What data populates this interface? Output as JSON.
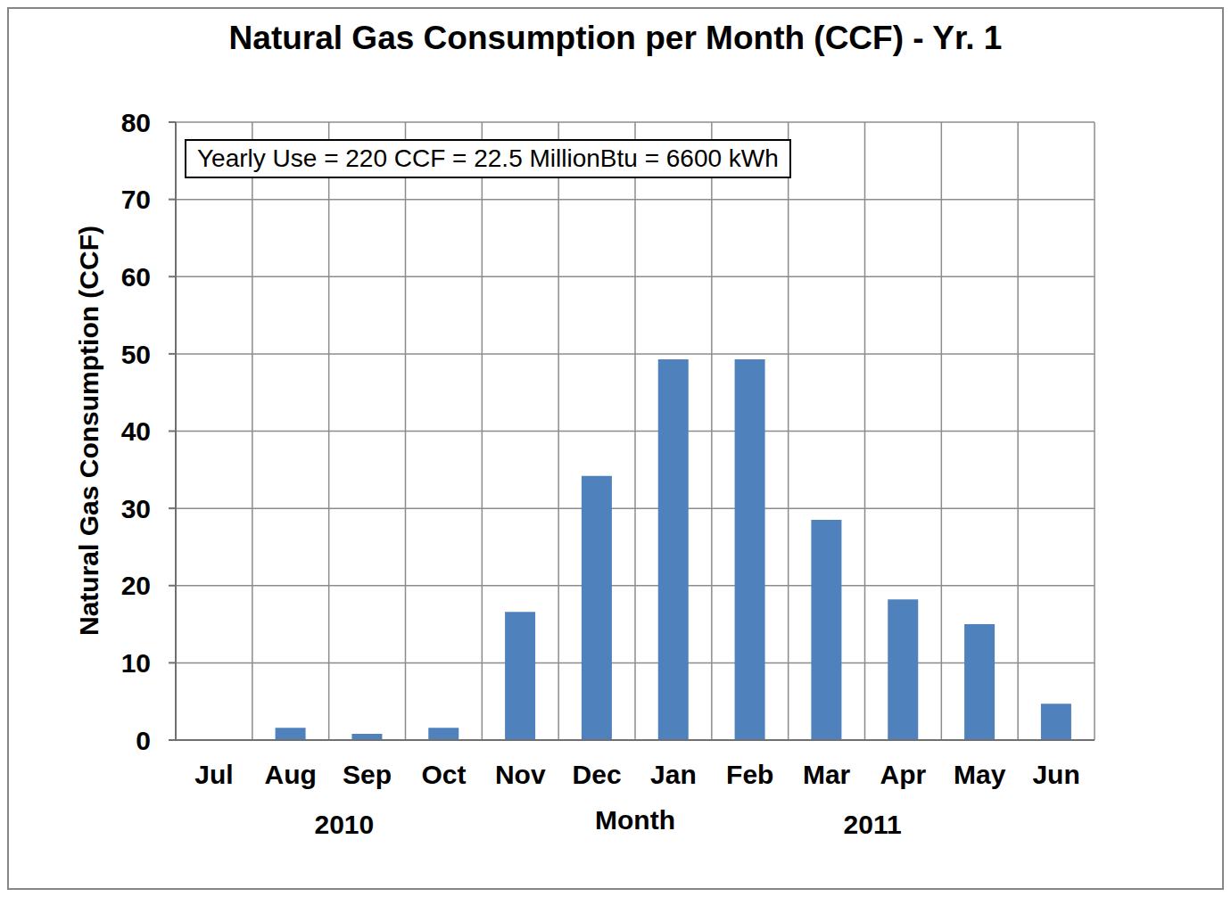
{
  "chart_data": {
    "type": "bar",
    "title": "Natural Gas Consumption per Month (CCF) - Yr. 1",
    "annotation": "Yearly Use = 220 CCF = 22.5 MillionBtu = 6600 kWh",
    "x_label": "Month",
    "y_label": "Natural Gas Consumption (CCF)",
    "x_group_labels": [
      "2010",
      "2011"
    ],
    "categories": [
      "Jul",
      "Aug",
      "Sep",
      "Oct",
      "Nov",
      "Dec",
      "Jan",
      "Feb",
      "Mar",
      "Apr",
      "May",
      "Jun"
    ],
    "values": [
      0,
      1.6,
      0.8,
      1.6,
      16.6,
      34.2,
      49.3,
      49.3,
      28.5,
      18.2,
      15,
      4.7
    ],
    "color": "#4f81bd",
    "ylim": [
      0,
      80
    ],
    "yticks": [
      0,
      10,
      20,
      30,
      40,
      50,
      60,
      70,
      80
    ],
    "grid": true
  }
}
